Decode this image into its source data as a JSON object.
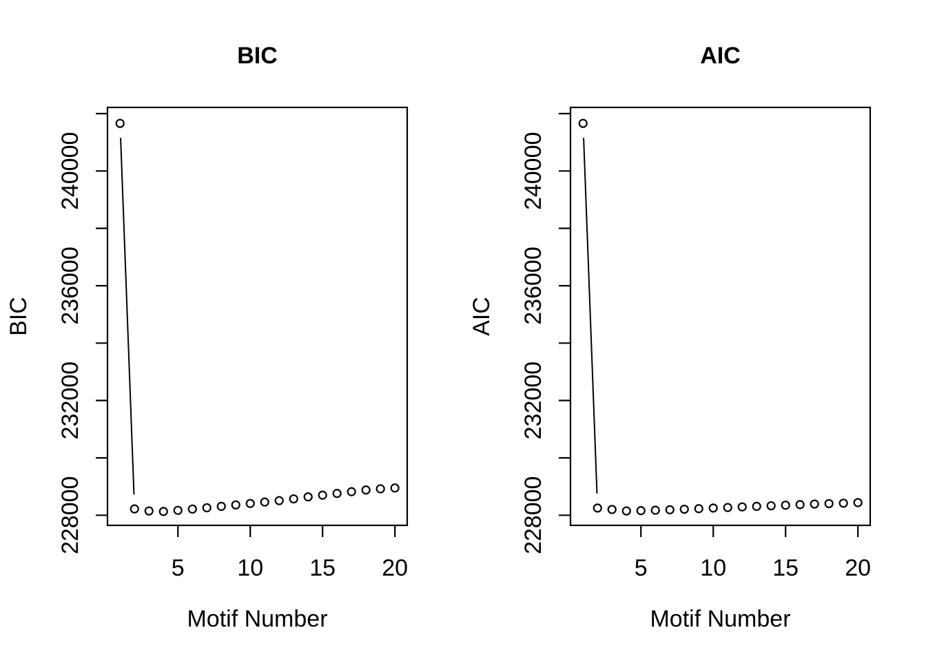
{
  "figure": {
    "background": "#ffffff",
    "foreground": "#000000"
  },
  "chart_data": [
    {
      "type": "scatter",
      "title": "BIC",
      "xlabel": "Motif Number",
      "ylabel": "BIC",
      "marker": "open-circle",
      "line_type": "b",
      "grid": false,
      "legend": null,
      "xlim": [
        0.13,
        20.85
      ],
      "ylim": [
        227647,
        242216
      ],
      "x": [
        1,
        2,
        3,
        4,
        5,
        6,
        7,
        8,
        9,
        10,
        11,
        12,
        13,
        14,
        15,
        16,
        17,
        18,
        19,
        20
      ],
      "values": [
        241660,
        228220,
        228150,
        228130,
        228170,
        228215,
        228260,
        228310,
        228360,
        228410,
        228460,
        228510,
        228570,
        228640,
        228700,
        228760,
        228820,
        228880,
        228920,
        228950
      ],
      "x_ticks": [
        5,
        10,
        15,
        20
      ],
      "x_tick_labels": [
        {
          "value": 5,
          "label": "5"
        },
        {
          "value": 10,
          "label": "10"
        },
        {
          "value": 15,
          "label": "15"
        },
        {
          "value": 20,
          "label": "20"
        }
      ],
      "y_ticks": [
        228000,
        230000,
        232000,
        234000,
        236000,
        238000,
        240000,
        242000
      ],
      "y_tick_labels": [
        {
          "value": 228000,
          "label": "228000"
        },
        {
          "value": 232000,
          "label": "232000"
        },
        {
          "value": 236000,
          "label": "236000"
        },
        {
          "value": 240000,
          "label": "240000"
        }
      ]
    },
    {
      "type": "scatter",
      "title": "AIC",
      "xlabel": "Motif Number",
      "ylabel": "AIC",
      "marker": "open-circle",
      "line_type": "b",
      "grid": false,
      "legend": null,
      "xlim": [
        0.13,
        20.85
      ],
      "ylim": [
        227647,
        242216
      ],
      "x": [
        1,
        2,
        3,
        4,
        5,
        6,
        7,
        8,
        9,
        10,
        11,
        12,
        13,
        14,
        15,
        16,
        17,
        18,
        19,
        20
      ],
      "values": [
        241660,
        228250,
        228200,
        228150,
        228160,
        228175,
        228190,
        228210,
        228230,
        228250,
        228270,
        228290,
        228310,
        228330,
        228350,
        228370,
        228390,
        228405,
        228420,
        228440
      ],
      "x_ticks": [
        5,
        10,
        15,
        20
      ],
      "x_tick_labels": [
        {
          "value": 5,
          "label": "5"
        },
        {
          "value": 10,
          "label": "10"
        },
        {
          "value": 15,
          "label": "15"
        },
        {
          "value": 20,
          "label": "20"
        }
      ],
      "y_ticks": [
        228000,
        230000,
        232000,
        234000,
        236000,
        238000,
        240000,
        242000
      ],
      "y_tick_labels": [
        {
          "value": 228000,
          "label": "228000"
        },
        {
          "value": 232000,
          "label": "232000"
        },
        {
          "value": 236000,
          "label": "236000"
        },
        {
          "value": 240000,
          "label": "240000"
        }
      ]
    }
  ]
}
